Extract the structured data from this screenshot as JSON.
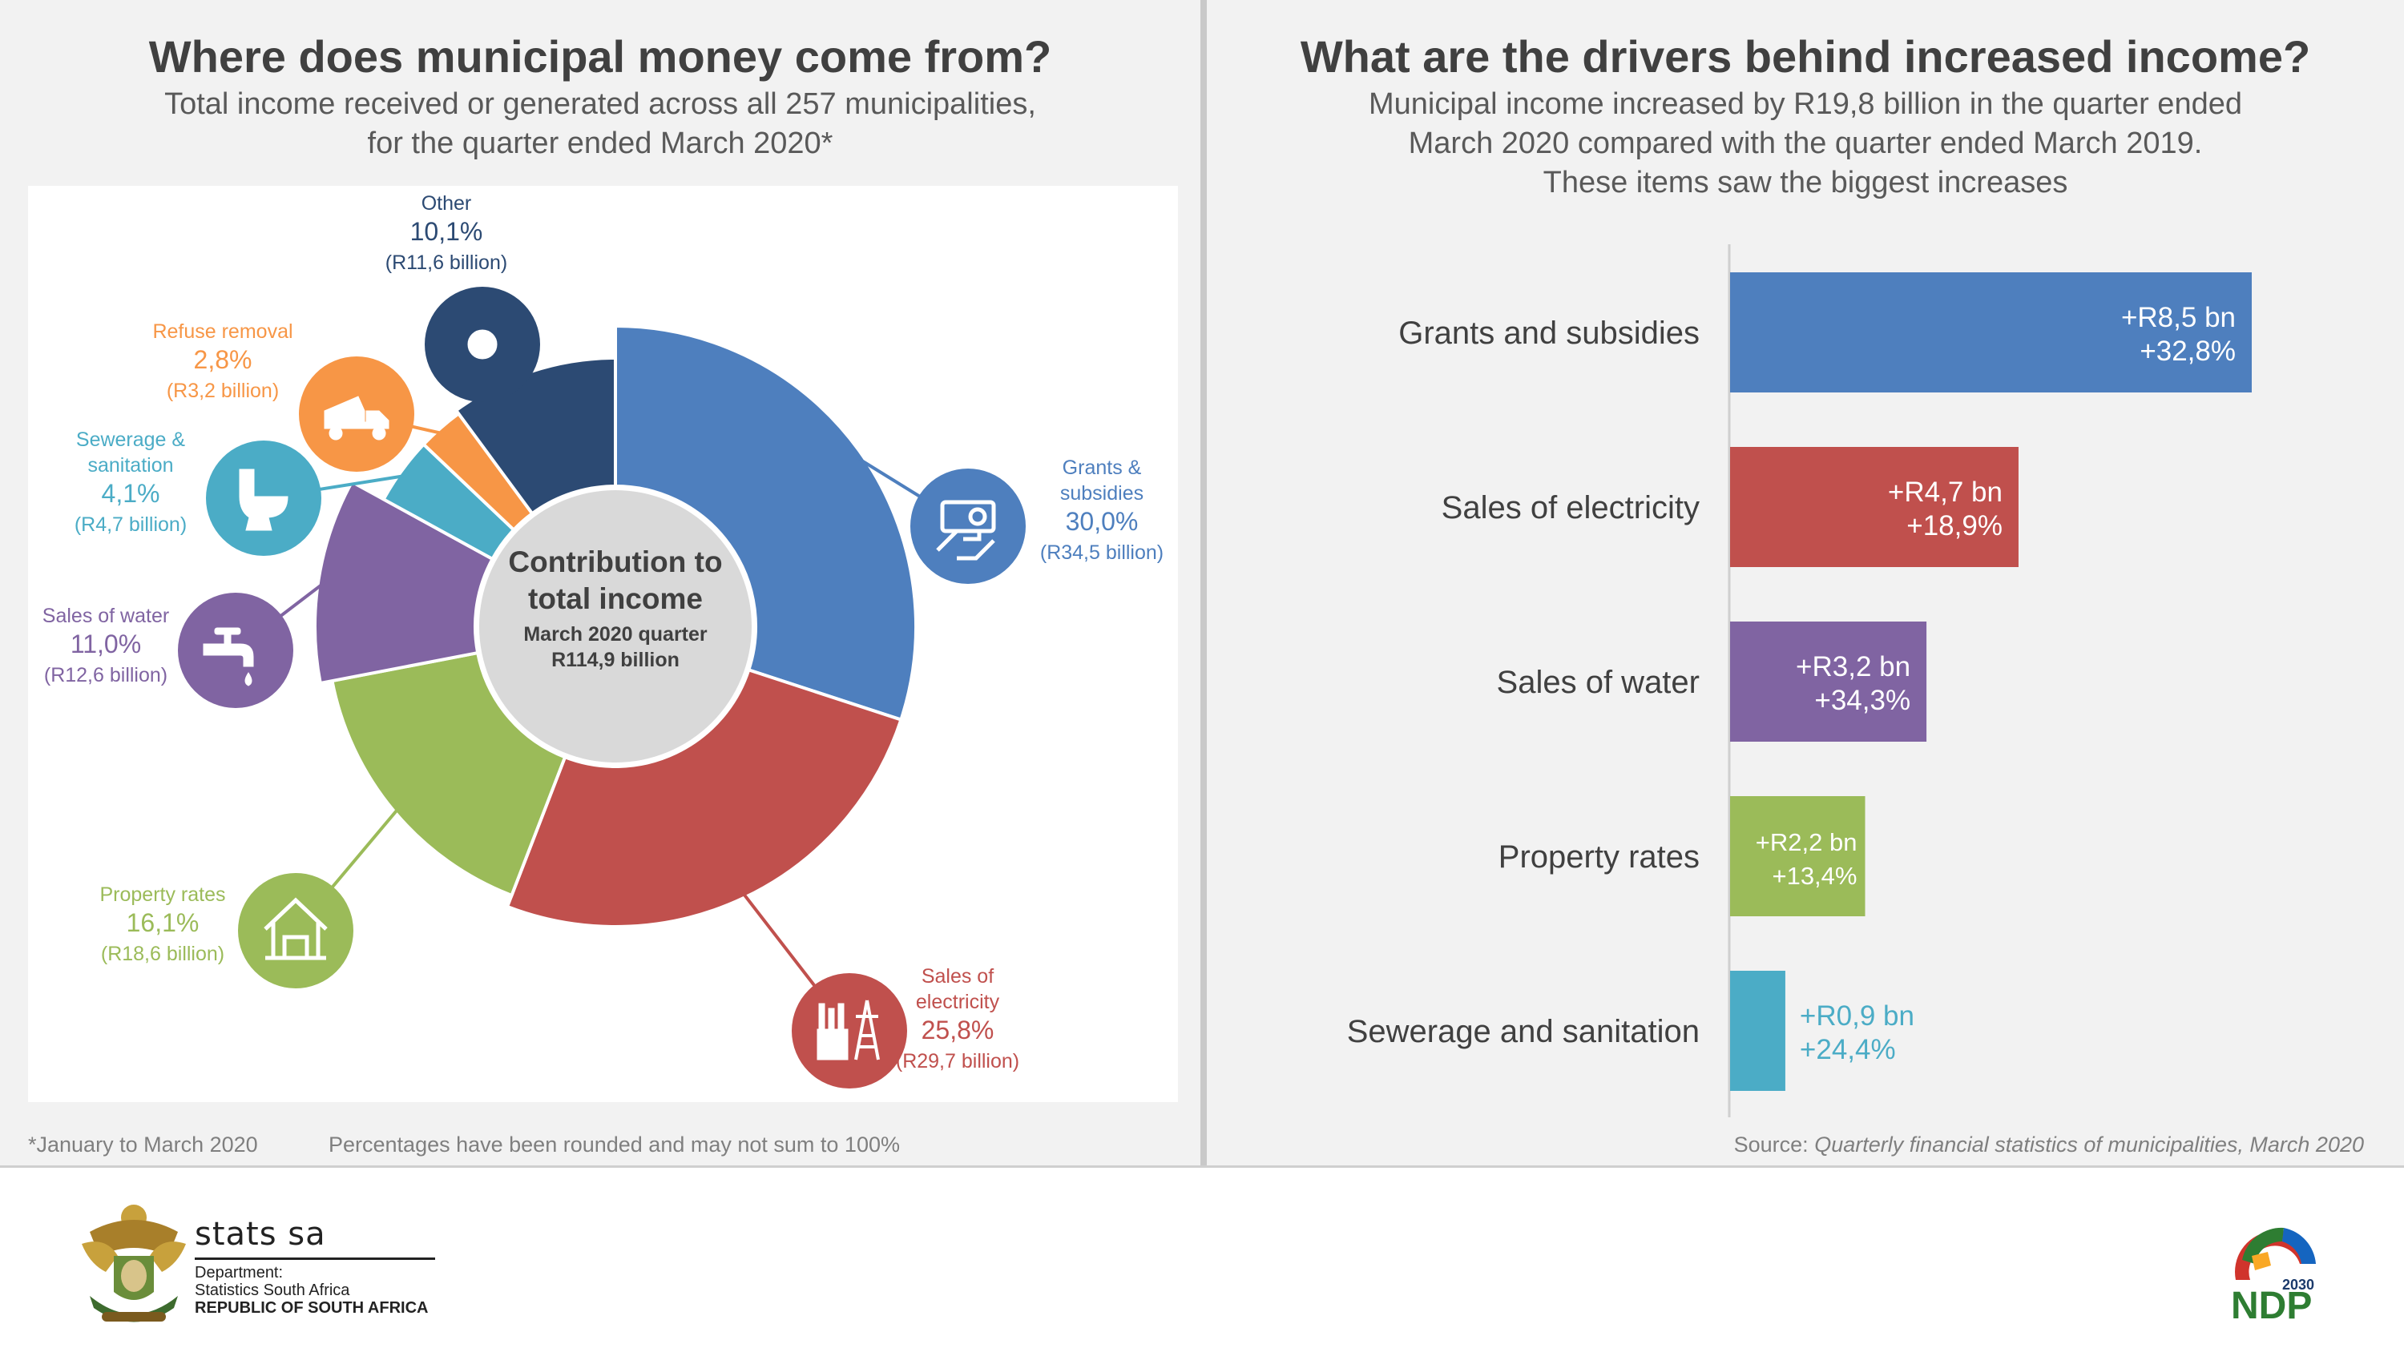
{
  "left": {
    "title": "Where does municipal money come from?",
    "subtitle_line1": "Total income received or generated across all 257 municipalities,",
    "subtitle_line2": "for the quarter ended March 2020*",
    "footnote": "*January to March 2020",
    "rounding_note": "Percentages have been rounded and may not sum to 100%"
  },
  "right": {
    "title": "What are the drivers behind increased income?",
    "subtitle_line1": "Municipal income increased by R19,8 billion in the quarter ended",
    "subtitle_line2": "March 2020 compared with the quarter ended March 2019.",
    "subtitle_line3": "These items saw the biggest increases",
    "source_label": "Source:",
    "source_text": "Quarterly financial statistics of municipalities, March 2020"
  },
  "footer": {
    "brand": "stats sa",
    "dept_line1": "Department:",
    "dept_line2": "Statistics South Africa",
    "dept_line3": "REPUBLIC OF SOUTH AFRICA",
    "ndp_year": "2030",
    "ndp_text": "NDP"
  },
  "chart_data": [
    {
      "type": "pie",
      "title": "Contribution to total income",
      "center_line1": "Contribution to",
      "center_line2": "total income",
      "center_line3": "March 2020 quarter",
      "center_line4": "R114,9 billion",
      "slices": [
        {
          "label": "Grants & subsidies",
          "label_lines": [
            "Grants &",
            "subsidies"
          ],
          "percent_text": "30,0%",
          "value": 30.0,
          "amount": "(R34,5 billion)",
          "color": "#4e7fbe",
          "icon": "cash-hand-icon"
        },
        {
          "label": "Sales of electricity",
          "label_lines": [
            "Sales of",
            "electricity"
          ],
          "percent_text": "25,8%",
          "value": 25.8,
          "amount": "(R29,7 billion)",
          "color": "#c0504d",
          "icon": "factory-pylon-icon"
        },
        {
          "label": "Property rates",
          "label_lines": [
            "Property rates"
          ],
          "percent_text": "16,1%",
          "value": 16.1,
          "amount": "(R18,6 billion)",
          "color": "#9bbb59",
          "icon": "house-icon"
        },
        {
          "label": "Sales of water",
          "label_lines": [
            "Sales of water"
          ],
          "percent_text": "11,0%",
          "value": 11.0,
          "amount": "(R12,6 billion)",
          "color": "#8064a2",
          "icon": "tap-icon"
        },
        {
          "label": "Sewerage & sanitation",
          "label_lines": [
            "Sewerage &",
            "sanitation"
          ],
          "percent_text": "4,1%",
          "value": 4.1,
          "amount": "(R4,7 billion)",
          "color": "#4bacc6",
          "icon": "toilet-icon"
        },
        {
          "label": "Refuse removal",
          "label_lines": [
            "Refuse removal"
          ],
          "percent_text": "2,8%",
          "value": 2.8,
          "amount": "(R3,2 billion)",
          "color": "#f79646",
          "icon": "dump-truck-icon"
        },
        {
          "label": "Other",
          "label_lines": [
            "Other"
          ],
          "percent_text": "10,1%",
          "value": 10.1,
          "amount": "(R11,6 billion)",
          "color": "#2c4a73",
          "icon": "dot-icon"
        }
      ]
    },
    {
      "type": "bar",
      "orientation": "horizontal",
      "title": "What are the drivers behind increased income?",
      "unit": "R billion",
      "xlim": [
        0,
        9
      ],
      "categories": [
        "Grants and subsidies",
        "Sales of electricity",
        "Sales of water",
        "Property rates",
        "Sewerage and sanitation"
      ],
      "values": [
        8.5,
        4.7,
        3.2,
        2.2,
        0.9
      ],
      "value_labels": [
        "+R8,5 bn",
        "+R4,7 bn",
        "+R3,2 bn",
        "+R2,2 bn",
        "+R0,9 bn"
      ],
      "pct_labels": [
        "+32,8%",
        "+18,9%",
        "+34,3%",
        "+13,4%",
        "+24,4%"
      ],
      "colors": [
        "#4e7fbe",
        "#c0504d",
        "#8064a2",
        "#9bbb59",
        "#4bacc6"
      ]
    }
  ]
}
